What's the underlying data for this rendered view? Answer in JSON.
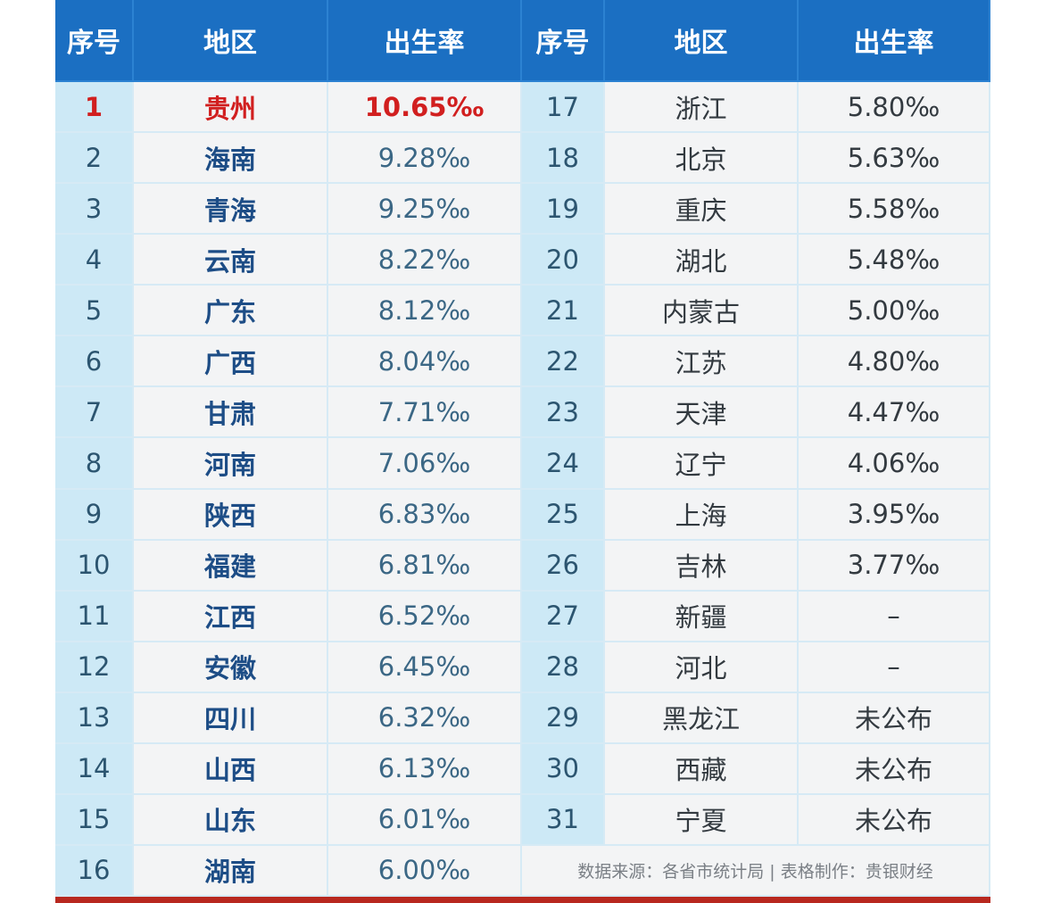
{
  "table": {
    "headers": [
      "序号",
      "地区",
      "出生率",
      "序号",
      "地区",
      "出生率"
    ],
    "left_rows": [
      [
        1,
        "贵州",
        "10.65‰"
      ],
      [
        2,
        "海南",
        "9.28‰"
      ],
      [
        3,
        "青海",
        "9.25‰"
      ],
      [
        4,
        "云南",
        "8.22‰"
      ],
      [
        5,
        "广东",
        "8.12‰"
      ],
      [
        6,
        "广西",
        "8.04‰"
      ],
      [
        7,
        "甘肃",
        "7.71‰"
      ],
      [
        8,
        "河南",
        "7.06‰"
      ],
      [
        9,
        "陕西",
        "6.83‰"
      ],
      [
        10,
        "福建",
        "6.81‰"
      ],
      [
        11,
        "江西",
        "6.52‰"
      ],
      [
        12,
        "安徽",
        "6.45‰"
      ],
      [
        13,
        "四川",
        "6.32‰"
      ],
      [
        14,
        "山西",
        "6.13‰"
      ],
      [
        15,
        "山东",
        "6.01‰"
      ],
      [
        16,
        "湖南",
        "6.00‰"
      ]
    ],
    "right_rows": [
      [
        17,
        "浙江",
        "5.80‰"
      ],
      [
        18,
        "北京",
        "5.63‰"
      ],
      [
        19,
        "重庆",
        "5.58‰"
      ],
      [
        20,
        "湖北",
        "5.48‰"
      ],
      [
        21,
        "内蒙古",
        "5.00‰"
      ],
      [
        22,
        "江苏",
        "4.80‰"
      ],
      [
        23,
        "天津",
        "4.47‰"
      ],
      [
        24,
        "辽宁",
        "4.06‰"
      ],
      [
        25,
        "上海",
        "3.95‰"
      ],
      [
        26,
        "吉林",
        "3.77‰"
      ],
      [
        27,
        "新疆",
        "–"
      ],
      [
        28,
        "河北",
        "–"
      ],
      [
        29,
        "黑龙江",
        "未公布"
      ],
      [
        30,
        "西藏",
        "未公布"
      ],
      [
        31,
        "宁夏",
        "未公布"
      ]
    ],
    "source": "数据来源：各省市统计局 | 表格制作：贵银财经"
  }
}
